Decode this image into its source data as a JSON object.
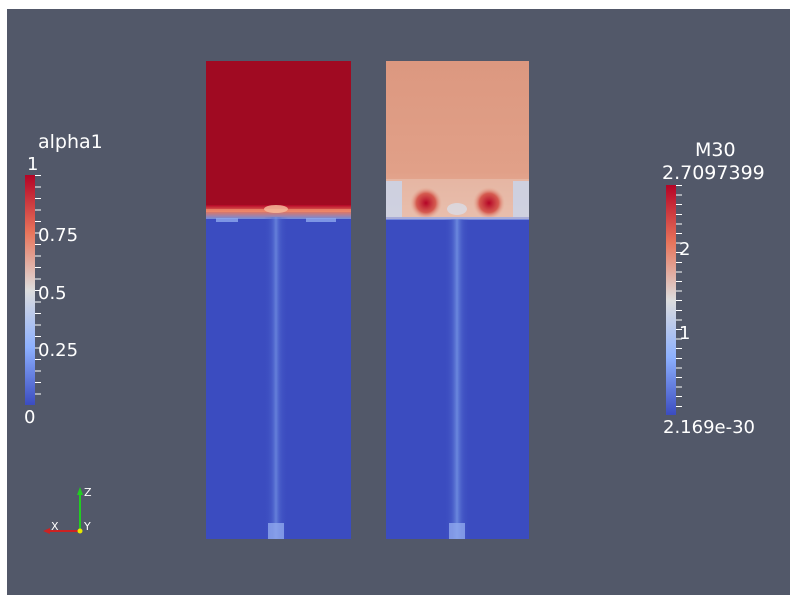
{
  "viewport": {
    "background_color": "#525869"
  },
  "fields": [
    {
      "name": "alpha1",
      "interface_fraction": 0.317
    },
    {
      "name": "M30",
      "interface_fraction": 0.32
    }
  ],
  "colormap": {
    "name": "Cool to Warm",
    "low_color": "#3b4cc0",
    "mid_color": "#dddddd",
    "high_color": "#b40426"
  },
  "scalar_bars": {
    "alpha1": {
      "title": "alpha1",
      "max_label": "1",
      "labels": [
        "0.75",
        "0.5",
        "0.25"
      ],
      "min_label": "0",
      "range": [
        0,
        1
      ]
    },
    "m30": {
      "title": "M30",
      "max_label": "2.7097399",
      "labels": [
        "2",
        "1"
      ],
      "min_label": "2.169e-30",
      "range": [
        2.169e-30,
        2.7097399
      ]
    }
  },
  "axes": {
    "x_label": "X",
    "y_label": "Y",
    "z_label": "Z",
    "x_color": "#cc2222",
    "y_color": "#e8e800",
    "z_color": "#22cc22"
  }
}
